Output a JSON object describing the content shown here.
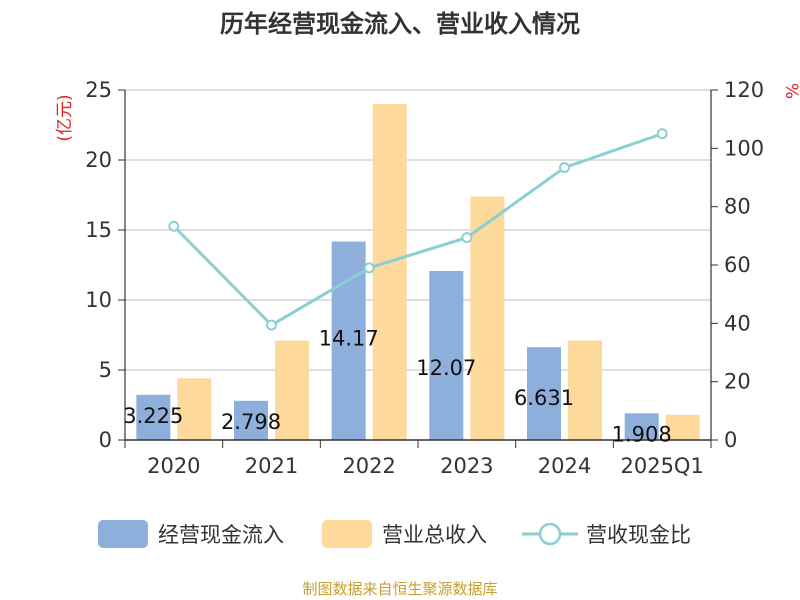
{
  "chart_data": {
    "type": "bar",
    "title": "历年经营现金流入、营业收入情况",
    "categories": [
      "2020",
      "2021",
      "2022",
      "2023",
      "2024",
      "2025Q1"
    ],
    "series": [
      {
        "name": "经营现金流入",
        "kind": "bar",
        "axis": "left",
        "color": "#8eaedb",
        "values": [
          3.225,
          2.798,
          14.171,
          12.071,
          6.631,
          1.908
        ],
        "labels": [
          "3.225",
          "2.798",
          "14.17",
          "12.07",
          "6.631",
          "1.908"
        ]
      },
      {
        "name": "营业总收入",
        "kind": "bar",
        "axis": "left",
        "color": "#fdd99b",
        "values": [
          4.4,
          7.1,
          24.0,
          17.4,
          7.1,
          1.8
        ]
      },
      {
        "name": "营收现金比",
        "kind": "line",
        "axis": "right",
        "color": "#89d0d4",
        "values": [
          73.3,
          39.4,
          59.0,
          69.4,
          93.4,
          105.0
        ]
      }
    ],
    "y_left": {
      "label": "(亿元)",
      "min": 0,
      "max": 25,
      "ticks": [
        0,
        5,
        10,
        15,
        20,
        25
      ]
    },
    "y_right": {
      "label": "%",
      "min": 0,
      "max": 120,
      "ticks": [
        0,
        20,
        40,
        60,
        80,
        100,
        120
      ]
    },
    "grid": true,
    "legend_position": "bottom"
  },
  "source": "制图数据来自恒生聚源数据库"
}
